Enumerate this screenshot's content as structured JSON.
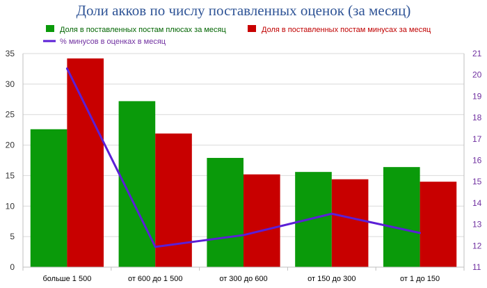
{
  "chart_data": {
    "type": "bar",
    "title": "Доли акков по числу поставленных оценок (за месяц)",
    "categories": [
      "больше 1 500",
      "от 600 до 1 500",
      "от 300 до 600",
      "от 150 до 300",
      "от 1 до 150"
    ],
    "series": [
      {
        "name": "Доля в поставленных постам плюсах за месяц",
        "type": "bar",
        "axis": "left",
        "color": "#0a9a0a",
        "text_color": "#006400",
        "values": [
          22.6,
          27.2,
          17.9,
          15.6,
          16.4
        ]
      },
      {
        "name": "Доля в поставленных постам минусах за месяц",
        "type": "bar",
        "axis": "left",
        "color": "#c80000",
        "text_color": "#c00000",
        "values": [
          34.2,
          21.9,
          15.2,
          14.4,
          14.0
        ]
      },
      {
        "name": "% минусов в оценках в месяц",
        "type": "line",
        "axis": "right",
        "color": "#5b1fd6",
        "text_color": "#7030a0",
        "values": [
          20.3,
          11.95,
          12.5,
          13.5,
          12.6
        ]
      }
    ],
    "ylim": [
      0,
      35
    ],
    "yticks": [
      "0",
      "5",
      "10",
      "15",
      "20",
      "25",
      "30",
      "35"
    ],
    "y2lim": [
      11,
      21
    ],
    "y2ticks": [
      "11",
      "12",
      "13",
      "14",
      "15",
      "16",
      "17",
      "18",
      "19",
      "20",
      "21"
    ],
    "grid": true,
    "legend": "top"
  }
}
